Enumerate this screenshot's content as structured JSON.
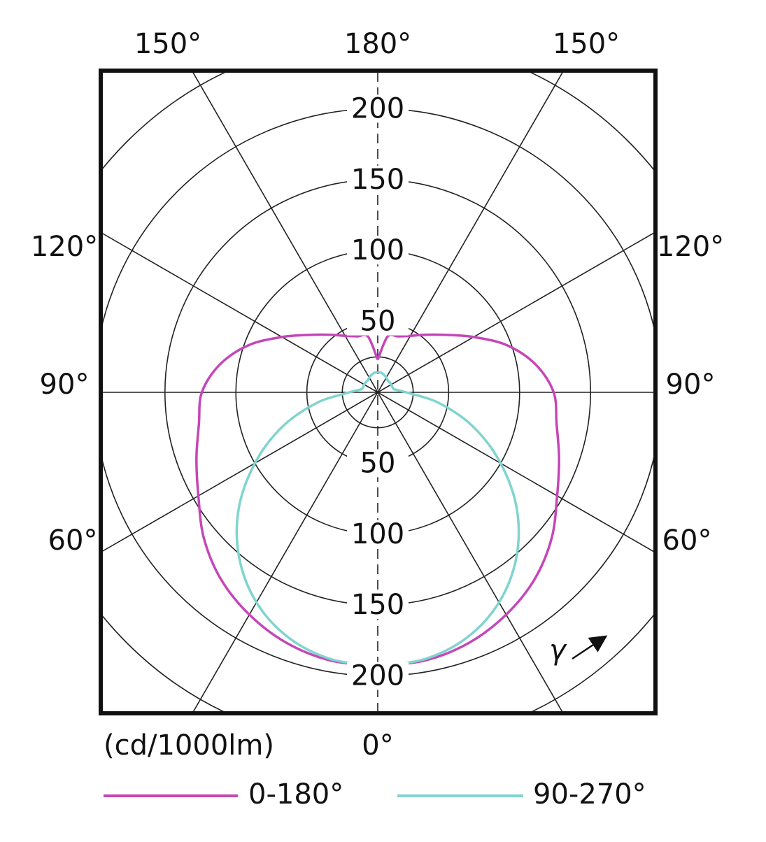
{
  "chart_data": {
    "type": "polar",
    "unit_label": "(cd/1000lm)",
    "annotation": "γ",
    "x": [
      0,
      10,
      20,
      30,
      40,
      50,
      60,
      70,
      80,
      90,
      100,
      110,
      120,
      130,
      140,
      150,
      160,
      170,
      180
    ],
    "series": [
      {
        "name": "0-180°",
        "color": "#c546b7",
        "values": [
          193,
          192,
          188,
          181,
          172,
          160,
          146,
          136,
          128,
          124,
          113,
          97,
          78,
          63,
          53,
          46,
          42,
          40,
          23
        ]
      },
      {
        "name": "90-270°",
        "color": "#80d4cf",
        "values": [
          193,
          191,
          184,
          171,
          152,
          128,
          100,
          72,
          44,
          20,
          12,
          11,
          11,
          11,
          11,
          12,
          13,
          14,
          14
        ]
      }
    ],
    "rlim": [
      0,
      250
    ],
    "rticks": [
      50,
      100,
      150,
      200
    ],
    "rgrid": [
      25,
      50,
      100,
      150,
      200,
      250
    ],
    "angle_grid": [
      0,
      30,
      60,
      90,
      120,
      150
    ],
    "angle_ticks": [
      {
        "value": 0,
        "label": "0°"
      },
      {
        "value": 60,
        "label": "60°"
      },
      {
        "value": 90,
        "label": "90°"
      },
      {
        "value": 120,
        "label": "120°"
      },
      {
        "value": 150,
        "label": "150°"
      },
      {
        "value": 180,
        "label": "180°"
      }
    ]
  }
}
